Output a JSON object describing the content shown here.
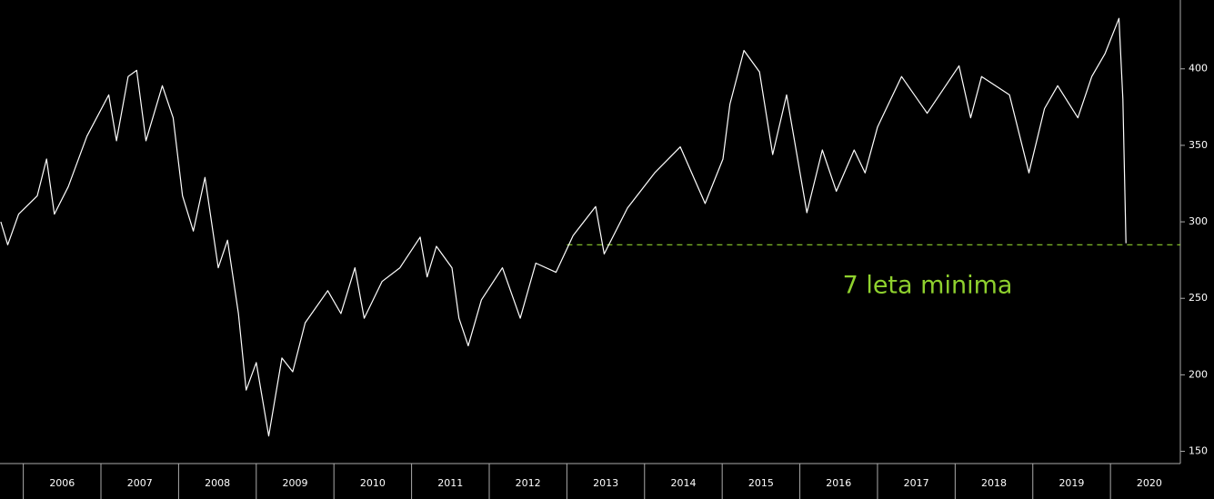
{
  "chart_data": {
    "type": "line",
    "color": "#ffffff",
    "x": [
      2005.71,
      2005.8,
      2005.94,
      2006.18,
      2006.3,
      2006.4,
      2006.58,
      2006.82,
      2007.1,
      2007.2,
      2007.35,
      2007.46,
      2007.58,
      2007.79,
      2007.93,
      2008.05,
      2008.19,
      2008.34,
      2008.51,
      2008.63,
      2008.77,
      2008.87,
      2009.0,
      2009.16,
      2009.33,
      2009.47,
      2009.63,
      2009.92,
      2010.09,
      2010.27,
      2010.39,
      2010.62,
      2010.85,
      2011.11,
      2011.2,
      2011.32,
      2011.52,
      2011.61,
      2011.73,
      2011.9,
      2012.17,
      2012.4,
      2012.6,
      2012.86,
      2013.08,
      2013.37,
      2013.48,
      2013.78,
      2014.13,
      2014.46,
      2014.78,
      2015.01,
      2015.1,
      2015.28,
      2015.48,
      2015.65,
      2015.83,
      2016.09,
      2016.29,
      2016.47,
      2016.7,
      2016.84,
      2017.0,
      2017.31,
      2017.64,
      2018.05,
      2018.2,
      2018.34,
      2018.7,
      2018.95,
      2019.15,
      2019.32,
      2019.58,
      2019.76,
      2019.93,
      2020.11,
      2020.16,
      2020.2
    ],
    "values": [
      300,
      285,
      305,
      317,
      341,
      305,
      323,
      356,
      383,
      353,
      395,
      399,
      353,
      389,
      368,
      317,
      294,
      329,
      270,
      288,
      240,
      190,
      208,
      160,
      211,
      202,
      234,
      255,
      240,
      270,
      237,
      261,
      270,
      290,
      264,
      284,
      270,
      237,
      219,
      249,
      270,
      237,
      273,
      267,
      291,
      310,
      279,
      309,
      332,
      349,
      312,
      341,
      377,
      412,
      398,
      344,
      383,
      306,
      347,
      320,
      347,
      332,
      362,
      395,
      371,
      402,
      368,
      395,
      383,
      332,
      374,
      389,
      368,
      395,
      410,
      433,
      380,
      286
    ],
    "xlim": [
      2005.7,
      2020.9
    ],
    "xticks": [
      2006,
      2007,
      2008,
      2009,
      2010,
      2011,
      2012,
      2013,
      2014,
      2015,
      2016,
      2017,
      2018,
      2019,
      2020
    ],
    "ylim": [
      142,
      445
    ],
    "yticks": [
      150,
      200,
      250,
      300,
      350,
      400
    ],
    "reference_line": {
      "value": 285,
      "x_start": 2013,
      "color": "#8fd12e"
    },
    "annotation": "7 leta minima"
  }
}
